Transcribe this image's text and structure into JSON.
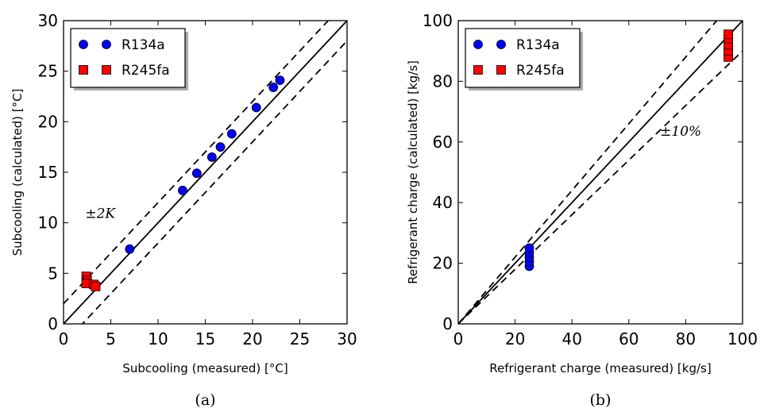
{
  "chart_data": [
    {
      "type": "scatter",
      "panel_label": "(a)",
      "xlabel": "Subcooling (measured) [°C]",
      "ylabel": "Subcooling (calculated) [°C]",
      "xlim": [
        0,
        30
      ],
      "ylim": [
        0,
        30
      ],
      "xticks": [
        "0",
        "5",
        "10",
        "15",
        "20",
        "25",
        "30"
      ],
      "yticks": [
        "0",
        "5",
        "10",
        "15",
        "20",
        "25",
        "30"
      ],
      "legend_position": "upper-left",
      "reference_lines": [
        {
          "style": "solid",
          "intercept": 0,
          "slope": 1
        },
        {
          "style": "dashed",
          "intercept": 2,
          "slope": 1
        },
        {
          "style": "dashed",
          "intercept": -2,
          "slope": 1
        }
      ],
      "annotation": {
        "text": "±2K",
        "x": 2.3,
        "y": 10.5
      },
      "series": [
        {
          "name": "R134a",
          "marker": "circle",
          "color": "#0000ff",
          "points": [
            [
              7.0,
              7.4
            ],
            [
              12.6,
              13.2
            ],
            [
              14.1,
              14.9
            ],
            [
              15.7,
              16.5
            ],
            [
              16.6,
              17.5
            ],
            [
              17.8,
              18.8
            ],
            [
              20.4,
              21.4
            ],
            [
              22.2,
              23.4
            ],
            [
              22.9,
              24.1
            ]
          ]
        },
        {
          "name": "R245fa",
          "marker": "square",
          "color": "#ff0000",
          "points": [
            [
              2.4,
              4.7
            ],
            [
              2.5,
              4.3
            ],
            [
              2.4,
              4.0
            ],
            [
              3.2,
              3.9
            ],
            [
              3.4,
              3.7
            ]
          ]
        }
      ]
    },
    {
      "type": "scatter",
      "panel_label": "(b)",
      "xlabel": "Refrigerant charge (measured) [kg/s]",
      "ylabel": "Refrigerant charge (calculated) [kg/s]",
      "xlim": [
        0,
        100
      ],
      "ylim": [
        0,
        100
      ],
      "xticks": [
        "0",
        "20",
        "40",
        "60",
        "80",
        "100"
      ],
      "yticks": [
        "0",
        "20",
        "40",
        "60",
        "80",
        "100"
      ],
      "legend_position": "upper-left",
      "reference_lines": [
        {
          "style": "solid",
          "slope": 1.0
        },
        {
          "style": "dashed",
          "slope": 1.1
        },
        {
          "style": "dashed",
          "slope": 0.9
        }
      ],
      "annotation": {
        "text": "±10%",
        "x": 71,
        "y": 62
      },
      "series": [
        {
          "name": "R134a",
          "marker": "circle",
          "color": "#0000ff",
          "points": [
            [
              25,
              19
            ],
            [
              25,
              20.5
            ],
            [
              25,
              22
            ],
            [
              25,
              23.5
            ],
            [
              25,
              25
            ]
          ]
        },
        {
          "name": "R245fa",
          "marker": "square",
          "color": "#ff0000",
          "points": [
            [
              95,
              88
            ],
            [
              95,
              90
            ],
            [
              95,
              92
            ],
            [
              95,
              94
            ],
            [
              95,
              95.5
            ]
          ]
        }
      ]
    }
  ]
}
